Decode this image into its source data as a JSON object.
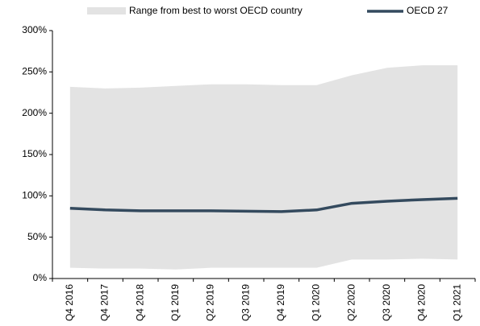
{
  "chart_data": {
    "type": "range_line",
    "categories": [
      "Q4 2016",
      "Q4 2017",
      "Q4 2018",
      "Q1 2019",
      "Q2 2019",
      "Q3 2019",
      "Q4 2019",
      "Q1 2020",
      "Q2 2020",
      "Q3 2020",
      "Q4 2020",
      "Q1 2021"
    ],
    "series": [
      {
        "name": "Range from best to worst OECD country",
        "color": "#e3e3e3",
        "high": [
          232,
          230,
          231,
          233,
          235,
          235,
          234,
          234,
          246,
          255,
          258,
          258
        ],
        "low": [
          13,
          12,
          12,
          11,
          13,
          13,
          13,
          13,
          23,
          23,
          24,
          23
        ]
      },
      {
        "name": "OECD 27",
        "color": "#344a5e",
        "values": [
          85,
          83,
          82,
          82,
          82,
          81.5,
          81,
          83,
          91,
          93.5,
          95.5,
          97
        ]
      }
    ],
    "ylim": [
      0,
      300
    ],
    "yticks": [
      {
        "value": 0,
        "label": "0%"
      },
      {
        "value": 50,
        "label": "50%"
      },
      {
        "value": 100,
        "label": "100%"
      },
      {
        "value": 150,
        "label": "150%"
      },
      {
        "value": 200,
        "label": "200%"
      },
      {
        "value": 250,
        "label": "250%"
      },
      {
        "value": 300,
        "label": "300%"
      }
    ],
    "grid": false,
    "legend": "top"
  }
}
